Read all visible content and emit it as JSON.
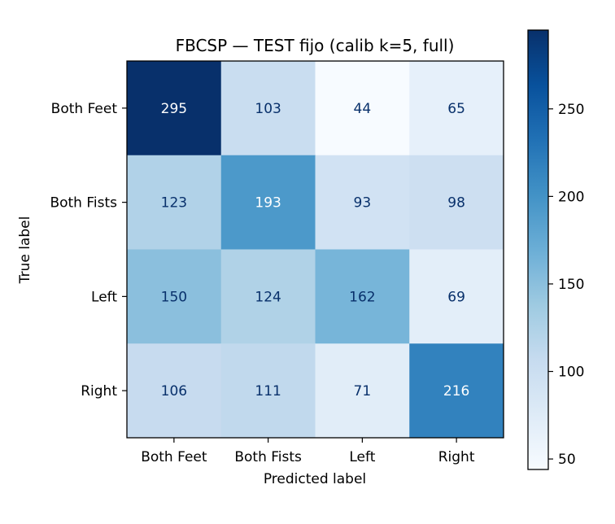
{
  "chart_data": {
    "type": "heatmap",
    "title": "FBCSP — TEST fijo (calib k=5, full)",
    "xlabel": "Predicted label",
    "ylabel": "True label",
    "x_categories": [
      "Both Feet",
      "Both Fists",
      "Left",
      "Right"
    ],
    "y_categories": [
      "Both Feet",
      "Both Fists",
      "Left",
      "Right"
    ],
    "values": [
      [
        295,
        103,
        44,
        65
      ],
      [
        123,
        193,
        93,
        98
      ],
      [
        150,
        124,
        162,
        69
      ],
      [
        106,
        111,
        71,
        216
      ]
    ],
    "colormap": "Blues",
    "vmin": 44,
    "vmax": 295,
    "colorbar": {
      "ticks": [
        50,
        100,
        150,
        200,
        250
      ]
    },
    "light_text_color": "#ffffff",
    "dark_text_color": "#08306b"
  }
}
